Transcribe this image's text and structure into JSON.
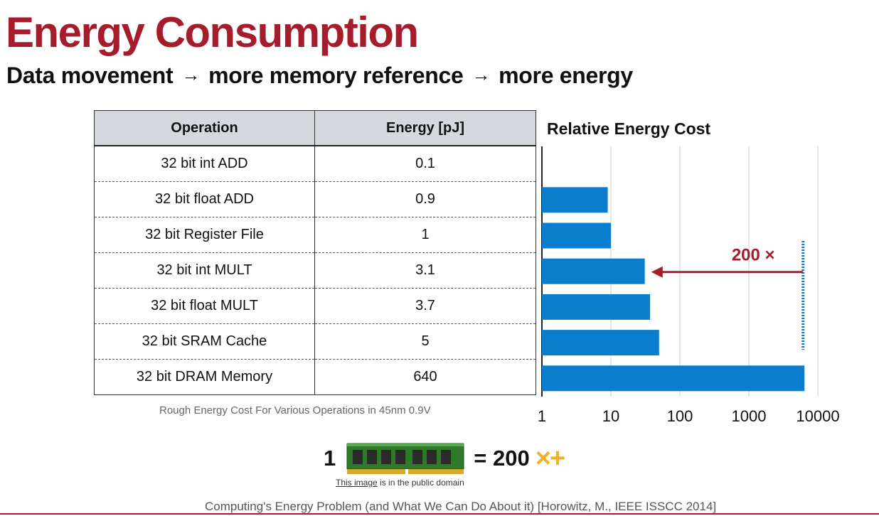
{
  "slide": {
    "title": "Energy Consumption",
    "subtitle": {
      "parts": [
        "Data movement",
        "more memory reference",
        "more energy"
      ],
      "arrow": "→"
    }
  },
  "table": {
    "headers": [
      "Operation",
      "Energy [pJ]"
    ],
    "rows": [
      {
        "operation": "32 bit int ADD",
        "energy": "0.1"
      },
      {
        "operation": "32 bit float ADD",
        "energy": "0.9"
      },
      {
        "operation": "32 bit Register File",
        "energy": "1"
      },
      {
        "operation": "32 bit int MULT",
        "energy": "3.1"
      },
      {
        "operation": "32 bit float MULT",
        "energy": "3.7"
      },
      {
        "operation": "32 bit SRAM Cache",
        "energy": "5"
      },
      {
        "operation": "32 bit DRAM Memory",
        "energy": "640"
      }
    ],
    "caption": "Rough Energy Cost For Various Operations in 45nm 0.9V"
  },
  "chart_data": {
    "type": "bar",
    "orientation": "horizontal",
    "title": "Relative Energy Cost",
    "xscale": "log",
    "xlim": [
      1,
      10000
    ],
    "xticks": [
      "1",
      "10",
      "100",
      "1000",
      "10000"
    ],
    "categories": [
      "32 bit int ADD",
      "32 bit float ADD",
      "32 bit Register File",
      "32 bit int MULT",
      "32 bit float MULT",
      "32 bit SRAM Cache",
      "32 bit DRAM Memory"
    ],
    "values": [
      1,
      9,
      10,
      31,
      37,
      50,
      6400
    ],
    "grid": true,
    "bar_color": "#0a7dcc",
    "annotation": {
      "text": "200 ×",
      "color": "#a51d2d",
      "from_value": 6400,
      "to_value": 35
    }
  },
  "memory_note": {
    "lhs": "1",
    "rhs": "= 200",
    "ops_symbols": "×+",
    "accent": "#f3b12a",
    "credit_link": "This image",
    "credit_rest": " is in the public domain"
  },
  "footer": {
    "citation": "Computing's Energy Problem (and What We Can Do About it) [Horowitz, M., IEEE ISSCC 2014]",
    "rule_color": "#a51d2d"
  }
}
